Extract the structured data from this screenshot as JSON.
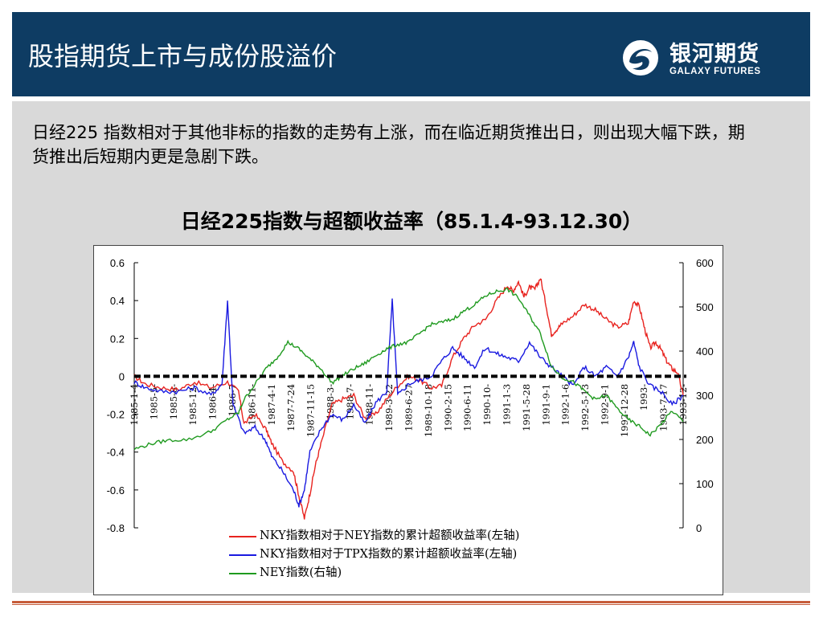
{
  "header": {
    "title": "股指期货上市与成份股溢价",
    "brand_name": "银河期货",
    "brand_sub": "GALAXY FUTURES"
  },
  "intro": {
    "text": "日经225 指数相对于其他非标的指数的走势有上涨，而在临近期货推出日，则出现大幅下跌，期货推出后短期内更是急剧下跌。"
  },
  "colors": {
    "header_bg": "#0e3c63",
    "panel_bg": "#d9d9d9",
    "red_series": "#e8231f",
    "blue_series": "#1a1ae0",
    "green_series": "#1f9a1f",
    "accent_rule": "#c65c3a"
  },
  "chart_data": {
    "type": "line",
    "title": "日经225指数与超额收益率（85.1.4-93.12.30）",
    "left_axis": {
      "ticks": [
        "0.6",
        "0.4",
        "0.2",
        "0",
        "-0.2",
        "-0.4",
        "-0.6",
        "-0.8"
      ],
      "ylim": [
        -0.8,
        0.6
      ]
    },
    "right_axis": {
      "ticks": [
        "600",
        "500",
        "400",
        "300",
        "200",
        "100",
        "0"
      ],
      "ylim": [
        0,
        600
      ]
    },
    "x_tick_labels": [
      "1985-1-4",
      "1985-5-",
      "1985-8-",
      "1985-12-",
      "1986-4-",
      "1986-7",
      "1986-11-",
      "1987-4-1",
      "1987-7-24",
      "1987-11-15",
      "1988-3-",
      "1988-7-",
      "1988-11-",
      "1989-3-22",
      "1989-6-27",
      "1989-10-18",
      "1990-2-15",
      "1990-6-11",
      "1990-10-",
      "1991-1-3",
      "1991-5-28",
      "1991-9-1",
      "1992-1-6",
      "1992-5-13",
      "1992-9-1",
      "1992-12-28",
      "1993-",
      "1993-7-17",
      "1993-12-"
    ],
    "x_range": [
      "1985-01-04",
      "1993-12-30"
    ],
    "zero_line": true,
    "series": [
      {
        "name": "NKY指数相对于NEY指数的累计超额收益率(左轴)",
        "axis": "left",
        "color": "#e8231f",
        "points": [
          [
            0.0,
            0.0
          ],
          [
            0.02,
            -0.04
          ],
          [
            0.05,
            -0.06
          ],
          [
            0.08,
            -0.07
          ],
          [
            0.11,
            -0.03
          ],
          [
            0.14,
            -0.06
          ],
          [
            0.17,
            -0.03
          ],
          [
            0.19,
            -0.08
          ],
          [
            0.2,
            -0.25
          ],
          [
            0.22,
            -0.2
          ],
          [
            0.24,
            -0.28
          ],
          [
            0.25,
            -0.35
          ],
          [
            0.27,
            -0.45
          ],
          [
            0.29,
            -0.5
          ],
          [
            0.3,
            -0.63
          ],
          [
            0.31,
            -0.75
          ],
          [
            0.32,
            -0.62
          ],
          [
            0.33,
            -0.47
          ],
          [
            0.34,
            -0.36
          ],
          [
            0.36,
            -0.15
          ],
          [
            0.38,
            -0.12
          ],
          [
            0.4,
            -0.1
          ],
          [
            0.42,
            -0.22
          ],
          [
            0.44,
            -0.2
          ],
          [
            0.46,
            -0.12
          ],
          [
            0.48,
            -0.05
          ],
          [
            0.5,
            0.0
          ],
          [
            0.52,
            -0.02
          ],
          [
            0.54,
            -0.06
          ],
          [
            0.56,
            -0.05
          ],
          [
            0.58,
            0.1
          ],
          [
            0.6,
            0.2
          ],
          [
            0.62,
            0.27
          ],
          [
            0.64,
            0.3
          ],
          [
            0.66,
            0.4
          ],
          [
            0.68,
            0.48
          ],
          [
            0.69,
            0.45
          ],
          [
            0.7,
            0.5
          ],
          [
            0.71,
            0.42
          ],
          [
            0.72,
            0.47
          ],
          [
            0.73,
            0.46
          ],
          [
            0.74,
            0.52
          ],
          [
            0.75,
            0.38
          ],
          [
            0.76,
            0.22
          ],
          [
            0.77,
            0.25
          ],
          [
            0.78,
            0.28
          ],
          [
            0.8,
            0.32
          ],
          [
            0.82,
            0.38
          ],
          [
            0.84,
            0.35
          ],
          [
            0.86,
            0.3
          ],
          [
            0.88,
            0.26
          ],
          [
            0.9,
            0.28
          ],
          [
            0.91,
            0.4
          ],
          [
            0.92,
            0.37
          ],
          [
            0.93,
            0.25
          ],
          [
            0.94,
            0.15
          ],
          [
            0.95,
            0.18
          ],
          [
            0.96,
            0.14
          ],
          [
            0.97,
            0.08
          ],
          [
            0.98,
            0.04
          ],
          [
            0.99,
            0.02
          ],
          [
            1.0,
            -0.1
          ]
        ]
      },
      {
        "name": "NKY指数相对于TPX指数的累计超额收益率(左轴)",
        "axis": "left",
        "color": "#1a1ae0",
        "points": [
          [
            0.0,
            -0.03
          ],
          [
            0.02,
            -0.06
          ],
          [
            0.05,
            -0.08
          ],
          [
            0.08,
            -0.08
          ],
          [
            0.11,
            -0.06
          ],
          [
            0.14,
            -0.1
          ],
          [
            0.16,
            -0.04
          ],
          [
            0.17,
            0.4
          ],
          [
            0.18,
            -0.15
          ],
          [
            0.2,
            -0.3
          ],
          [
            0.22,
            -0.27
          ],
          [
            0.24,
            -0.34
          ],
          [
            0.25,
            -0.42
          ],
          [
            0.27,
            -0.5
          ],
          [
            0.29,
            -0.6
          ],
          [
            0.3,
            -0.68
          ],
          [
            0.31,
            -0.6
          ],
          [
            0.32,
            -0.4
          ],
          [
            0.34,
            -0.28
          ],
          [
            0.36,
            -0.2
          ],
          [
            0.38,
            -0.23
          ],
          [
            0.4,
            -0.15
          ],
          [
            0.42,
            -0.25
          ],
          [
            0.44,
            -0.14
          ],
          [
            0.46,
            -0.08
          ],
          [
            0.47,
            0.4
          ],
          [
            0.48,
            -0.1
          ],
          [
            0.5,
            -0.04
          ],
          [
            0.52,
            -0.02
          ],
          [
            0.54,
            0.0
          ],
          [
            0.56,
            0.08
          ],
          [
            0.58,
            0.15
          ],
          [
            0.6,
            0.1
          ],
          [
            0.62,
            0.05
          ],
          [
            0.64,
            0.15
          ],
          [
            0.66,
            0.12
          ],
          [
            0.68,
            0.1
          ],
          [
            0.7,
            0.08
          ],
          [
            0.72,
            0.18
          ],
          [
            0.74,
            0.1
          ],
          [
            0.76,
            0.05
          ],
          [
            0.78,
            0.0
          ],
          [
            0.8,
            -0.05
          ],
          [
            0.82,
            0.05
          ],
          [
            0.84,
            0.0
          ],
          [
            0.86,
            0.05
          ],
          [
            0.88,
            0.0
          ],
          [
            0.9,
            0.1
          ],
          [
            0.91,
            0.18
          ],
          [
            0.92,
            0.05
          ],
          [
            0.94,
            -0.05
          ],
          [
            0.96,
            -0.08
          ],
          [
            0.98,
            -0.15
          ],
          [
            1.0,
            -0.1
          ]
        ]
      },
      {
        "name": "NEY指数(右轴)",
        "axis": "right",
        "color": "#1f9a1f",
        "points": [
          [
            0.0,
            178
          ],
          [
            0.03,
            190
          ],
          [
            0.06,
            198
          ],
          [
            0.1,
            200
          ],
          [
            0.14,
            218
          ],
          [
            0.17,
            245
          ],
          [
            0.19,
            260
          ],
          [
            0.2,
            290
          ],
          [
            0.22,
            325
          ],
          [
            0.24,
            360
          ],
          [
            0.26,
            385
          ],
          [
            0.28,
            420
          ],
          [
            0.3,
            405
          ],
          [
            0.32,
            382
          ],
          [
            0.34,
            360
          ],
          [
            0.36,
            328
          ],
          [
            0.38,
            345
          ],
          [
            0.4,
            360
          ],
          [
            0.42,
            372
          ],
          [
            0.44,
            390
          ],
          [
            0.46,
            405
          ],
          [
            0.48,
            415
          ],
          [
            0.5,
            420
          ],
          [
            0.52,
            440
          ],
          [
            0.54,
            460
          ],
          [
            0.56,
            465
          ],
          [
            0.58,
            472
          ],
          [
            0.6,
            490
          ],
          [
            0.62,
            505
          ],
          [
            0.64,
            525
          ],
          [
            0.66,
            535
          ],
          [
            0.68,
            540
          ],
          [
            0.7,
            520
          ],
          [
            0.72,
            480
          ],
          [
            0.74,
            440
          ],
          [
            0.76,
            365
          ],
          [
            0.78,
            340
          ],
          [
            0.8,
            330
          ],
          [
            0.82,
            310
          ],
          [
            0.84,
            290
          ],
          [
            0.86,
            300
          ],
          [
            0.88,
            270
          ],
          [
            0.9,
            245
          ],
          [
            0.92,
            230
          ],
          [
            0.94,
            210
          ],
          [
            0.96,
            235
          ],
          [
            0.98,
            265
          ],
          [
            1.0,
            240
          ]
        ]
      }
    ]
  },
  "legend": {
    "items": [
      {
        "label": "NKY指数相对于NEY指数的累计超额收益率(左轴)",
        "color": "#e8231f"
      },
      {
        "label": "NKY指数相对于TPX指数的累计超额收益率(左轴)",
        "color": "#1a1ae0"
      },
      {
        "label": "NEY指数(右轴)",
        "color": "#1f9a1f"
      }
    ]
  }
}
